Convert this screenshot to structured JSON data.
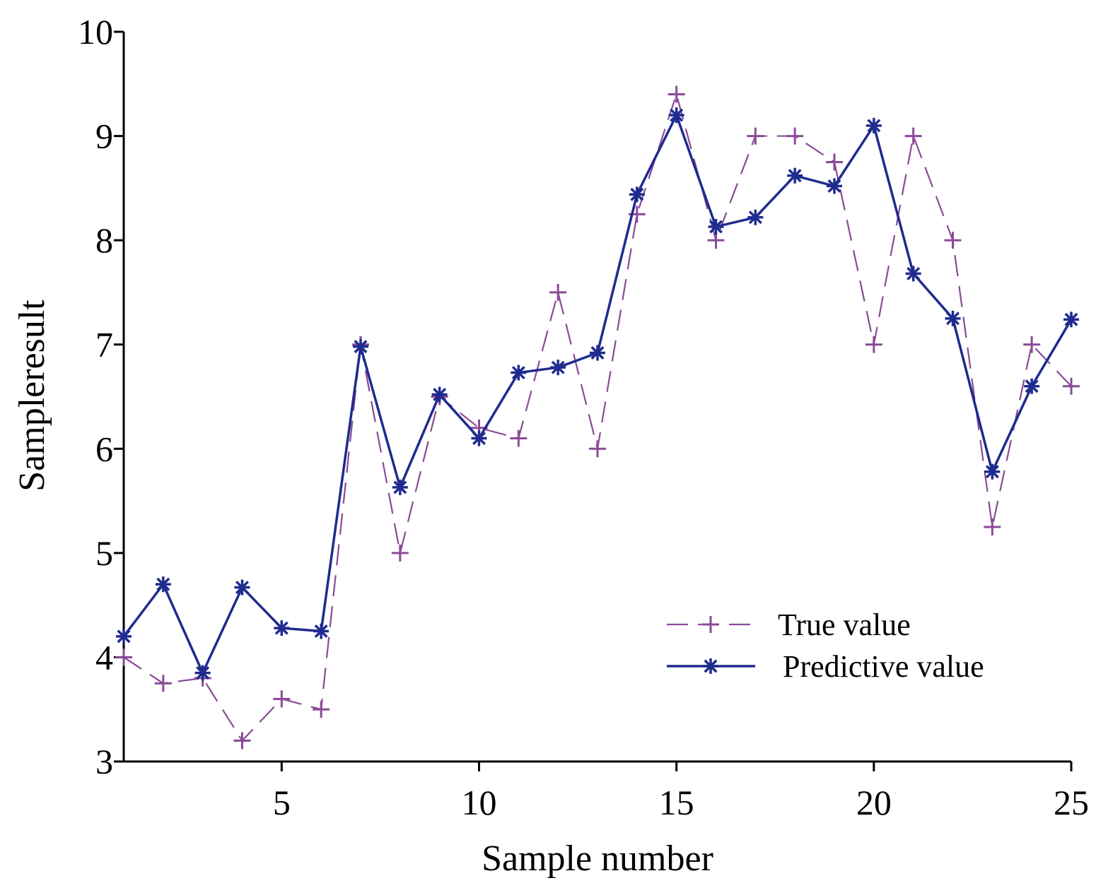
{
  "chart_data": {
    "type": "line",
    "title": "",
    "xlabel": "Sample number",
    "ylabel": "Sampleresult",
    "xlim": [
      1,
      25
    ],
    "ylim": [
      3,
      10
    ],
    "xticks": [
      5,
      10,
      15,
      20,
      25
    ],
    "yticks": [
      3,
      4,
      5,
      6,
      7,
      8,
      9,
      10
    ],
    "grid": false,
    "legend_position": "lower-right",
    "x": [
      1,
      2,
      3,
      4,
      5,
      6,
      7,
      8,
      9,
      10,
      11,
      12,
      13,
      14,
      15,
      16,
      17,
      18,
      19,
      20,
      21,
      22,
      23,
      24,
      25
    ],
    "series": [
      {
        "name": "True value",
        "color": "#8a4a98",
        "line_style": "dashed",
        "marker": "plus",
        "values": [
          4.0,
          3.75,
          3.8,
          3.2,
          3.6,
          3.5,
          7.0,
          5.0,
          6.5,
          6.2,
          6.1,
          7.5,
          6.0,
          8.25,
          9.4,
          8.0,
          9.0,
          9.0,
          8.75,
          7.0,
          9.0,
          8.0,
          5.25,
          7.0,
          6.6
        ]
      },
      {
        "name": "Predictive value",
        "color": "#1f2b8e",
        "line_style": "solid",
        "marker": "asterisk",
        "values": [
          4.2,
          4.7,
          3.85,
          4.67,
          4.28,
          4.25,
          6.98,
          5.63,
          6.52,
          6.1,
          6.73,
          6.78,
          6.92,
          8.44,
          9.2,
          8.13,
          8.22,
          8.62,
          8.52,
          9.1,
          7.68,
          7.25,
          5.78,
          6.6,
          7.24
        ]
      }
    ]
  }
}
